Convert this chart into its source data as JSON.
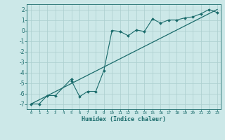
{
  "xlabel": "Humidex (Indice chaleur)",
  "ylabel": "",
  "bg_color": "#cce8e8",
  "grid_color": "#aacece",
  "line_color": "#1a6b6b",
  "xlim": [
    -0.5,
    23.4
  ],
  "ylim": [
    -7.5,
    2.5
  ],
  "xticks": [
    0,
    1,
    2,
    3,
    4,
    5,
    6,
    7,
    8,
    9,
    10,
    11,
    12,
    13,
    14,
    15,
    16,
    17,
    18,
    19,
    20,
    21,
    22,
    23
  ],
  "yticks": [
    -7,
    -6,
    -5,
    -4,
    -3,
    -2,
    -1,
    0,
    1,
    2
  ],
  "scatter_x": [
    0,
    1,
    2,
    3,
    5,
    5,
    6,
    7,
    8,
    9,
    10,
    11,
    12,
    13,
    14,
    15,
    16,
    17,
    18,
    19,
    20,
    21,
    22,
    23
  ],
  "scatter_y": [
    -7,
    -7,
    -6.2,
    -6.2,
    -4.6,
    -4.8,
    -6.3,
    -5.8,
    -5.8,
    -3.8,
    0.0,
    -0.1,
    -0.5,
    0.05,
    -0.1,
    1.1,
    0.7,
    1.0,
    1.0,
    1.2,
    1.3,
    1.6,
    2.0,
    1.7
  ],
  "trend_x": [
    0,
    23
  ],
  "trend_y": [
    -7.0,
    2.0
  ]
}
